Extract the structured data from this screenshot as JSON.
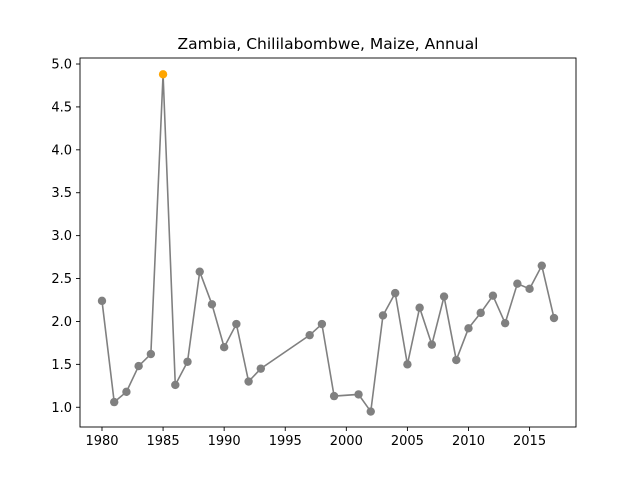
{
  "chart_data": {
    "type": "line",
    "title": "Zambia, Chililabombwe, Maize, Annual",
    "xlabel": "",
    "ylabel": "",
    "xlim": [
      1978.2,
      2018.8
    ],
    "ylim": [
      0.77,
      5.07
    ],
    "xticks": [
      1980,
      1985,
      1990,
      1995,
      2000,
      2005,
      2010,
      2015
    ],
    "yticks": [
      1.0,
      1.5,
      2.0,
      2.5,
      3.0,
      3.5,
      4.0,
      4.5,
      5.0
    ],
    "grid": false,
    "line_color": "#808080",
    "highlight_color": "#FFA500",
    "highlight_point": {
      "x": 1985,
      "y": 4.88
    },
    "series": [
      {
        "x": [
          1980,
          1981,
          1982,
          1983,
          1984,
          1985,
          1986,
          1987,
          1988,
          1989,
          1990,
          1991,
          1992,
          1993,
          1997,
          1998,
          1999,
          2001,
          2002,
          2003,
          2004,
          2005,
          2006,
          2007,
          2008,
          2009,
          2010,
          2011,
          2012,
          2013,
          2014,
          2015,
          2016,
          2017
        ],
        "y": [
          2.24,
          1.06,
          1.18,
          1.48,
          1.62,
          4.88,
          1.26,
          1.53,
          2.58,
          2.2,
          1.7,
          1.97,
          1.3,
          1.45,
          1.84,
          1.97,
          1.13,
          1.15,
          0.95,
          2.07,
          2.33,
          1.5,
          2.16,
          1.73,
          2.29,
          1.55,
          1.92,
          2.1,
          2.3,
          1.98,
          2.44,
          2.38,
          2.65,
          2.04
        ]
      }
    ]
  }
}
